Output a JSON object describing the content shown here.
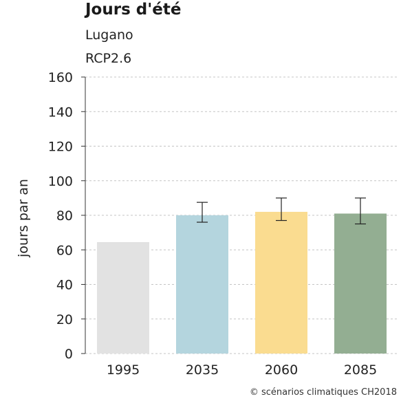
{
  "chart_data": {
    "type": "bar",
    "title": "Jours d'été",
    "subtitle": "Lugano",
    "scenario": "RCP2.6",
    "ylabel": "jours par an",
    "xlabel": "",
    "ylim": [
      0,
      160
    ],
    "yticks": [
      0,
      20,
      40,
      60,
      80,
      100,
      120,
      140,
      160
    ],
    "grid": true,
    "categories": [
      "1995",
      "2035",
      "2060",
      "2085"
    ],
    "values": [
      64.5,
      80,
      82,
      81
    ],
    "error_low": [
      null,
      76,
      77,
      75
    ],
    "error_high": [
      null,
      87.5,
      90,
      90
    ],
    "colors": [
      "#e2e2e2",
      "#b4d5de",
      "#fadc90",
      "#93ae92"
    ]
  },
  "copyright": "© scénarios climatiques CH2018"
}
